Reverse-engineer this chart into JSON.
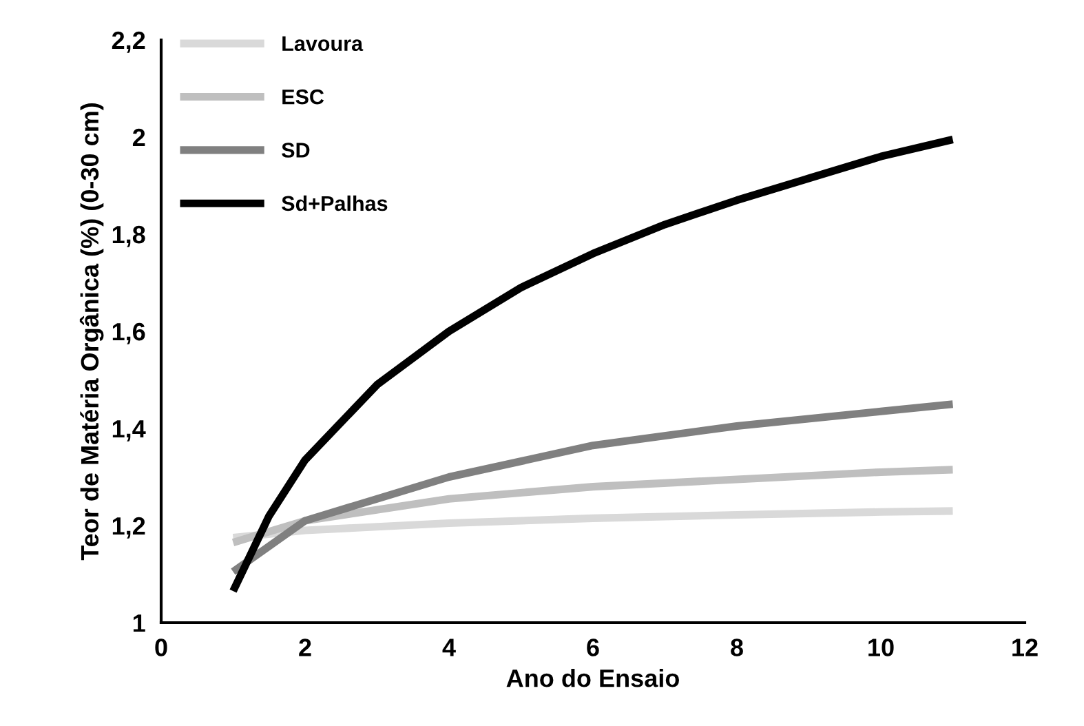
{
  "chart_data": {
    "type": "line",
    "xlabel": "Ano do Ensaio",
    "ylabel": "Teor de Matéria Orgânica (%) (0-30 cm)",
    "xlim": [
      0,
      12
    ],
    "xticks": [
      0,
      2,
      4,
      6,
      8,
      10,
      12
    ],
    "ylim": [
      1,
      2.2
    ],
    "yticks": [
      1,
      {
        "value": 1.2,
        "label": "1,2"
      },
      {
        "value": 1.4,
        "label": "1,4"
      },
      {
        "value": 1.6,
        "label": "1,6"
      },
      {
        "value": 1.8,
        "label": "1,8"
      },
      2,
      {
        "value": 2.2,
        "label": "2,2"
      }
    ],
    "grid": false,
    "legend": "top left",
    "marker": "none",
    "line_style": "solid",
    "series": [
      {
        "name": "Lavoura",
        "color": "#d9d9d9",
        "x": [
          1,
          2,
          4,
          6,
          8,
          10,
          11
        ],
        "values": [
          1.175,
          1.19,
          1.205,
          1.215,
          1.222,
          1.228,
          1.23
        ]
      },
      {
        "name": "ESC",
        "color": "#bfbfbf",
        "x": [
          1,
          2,
          4,
          6,
          8,
          10,
          11
        ],
        "values": [
          1.165,
          1.21,
          1.255,
          1.28,
          1.295,
          1.31,
          1.315
        ]
      },
      {
        "name": "SD",
        "color": "#808080",
        "x": [
          1,
          2,
          4,
          6,
          8,
          10,
          11
        ],
        "values": [
          1.105,
          1.21,
          1.3,
          1.365,
          1.405,
          1.435,
          1.45
        ]
      },
      {
        "name": "Sd+Palhas",
        "color": "#000000",
        "x": [
          1,
          1.5,
          2,
          3,
          4,
          5,
          6,
          7,
          8,
          9,
          10,
          11
        ],
        "values": [
          1.065,
          1.22,
          1.335,
          1.49,
          1.6,
          1.69,
          1.76,
          1.82,
          1.87,
          1.915,
          1.96,
          1.995
        ]
      }
    ]
  }
}
